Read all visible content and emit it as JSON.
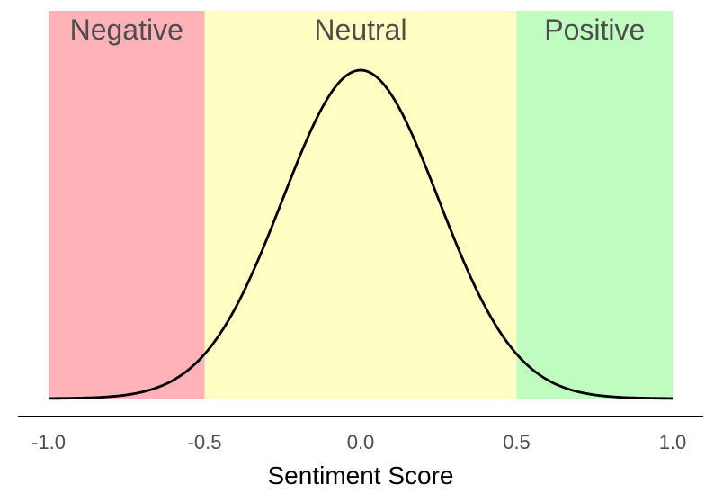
{
  "chart_data": {
    "type": "area",
    "xlabel": "Sentiment Score",
    "ylabel": "",
    "xlim": [
      -1.0,
      1.0
    ],
    "ylim": [
      0,
      1.05
    ],
    "grid": false,
    "legend": "none",
    "x_ticks": [
      {
        "value": -1.0,
        "label": "-1.0"
      },
      {
        "value": -0.5,
        "label": "-0.5"
      },
      {
        "value": 0.0,
        "label": "0.0"
      },
      {
        "value": 0.5,
        "label": "0.5"
      },
      {
        "value": 1.0,
        "label": "1.0"
      }
    ],
    "regions": [
      {
        "label": "Negative",
        "x_start": -1.0,
        "x_end": -0.5,
        "color": "#ffb3b8"
      },
      {
        "label": "Neutral",
        "x_start": -0.5,
        "x_end": 0.5,
        "color": "#ffffc3"
      },
      {
        "label": "Positive",
        "x_start": 0.5,
        "x_end": 1.0,
        "color": "#c0fcc0"
      }
    ],
    "curve": {
      "shape": "normal-density",
      "mean": 0.0,
      "sd": 0.25,
      "color": "#000000",
      "x": [
        -1.0,
        -0.9,
        -0.8,
        -0.7,
        -0.6,
        -0.5,
        -0.4,
        -0.3,
        -0.2,
        -0.1,
        0.0,
        0.1,
        0.2,
        0.3,
        0.4,
        0.5,
        0.6,
        0.7,
        0.8,
        0.9,
        1.0
      ],
      "y": [
        0.0003,
        0.0015,
        0.006,
        0.02,
        0.056,
        0.135,
        0.278,
        0.487,
        0.726,
        0.923,
        1.0,
        0.923,
        0.726,
        0.487,
        0.278,
        0.135,
        0.056,
        0.02,
        0.006,
        0.0015,
        0.0003
      ]
    }
  }
}
